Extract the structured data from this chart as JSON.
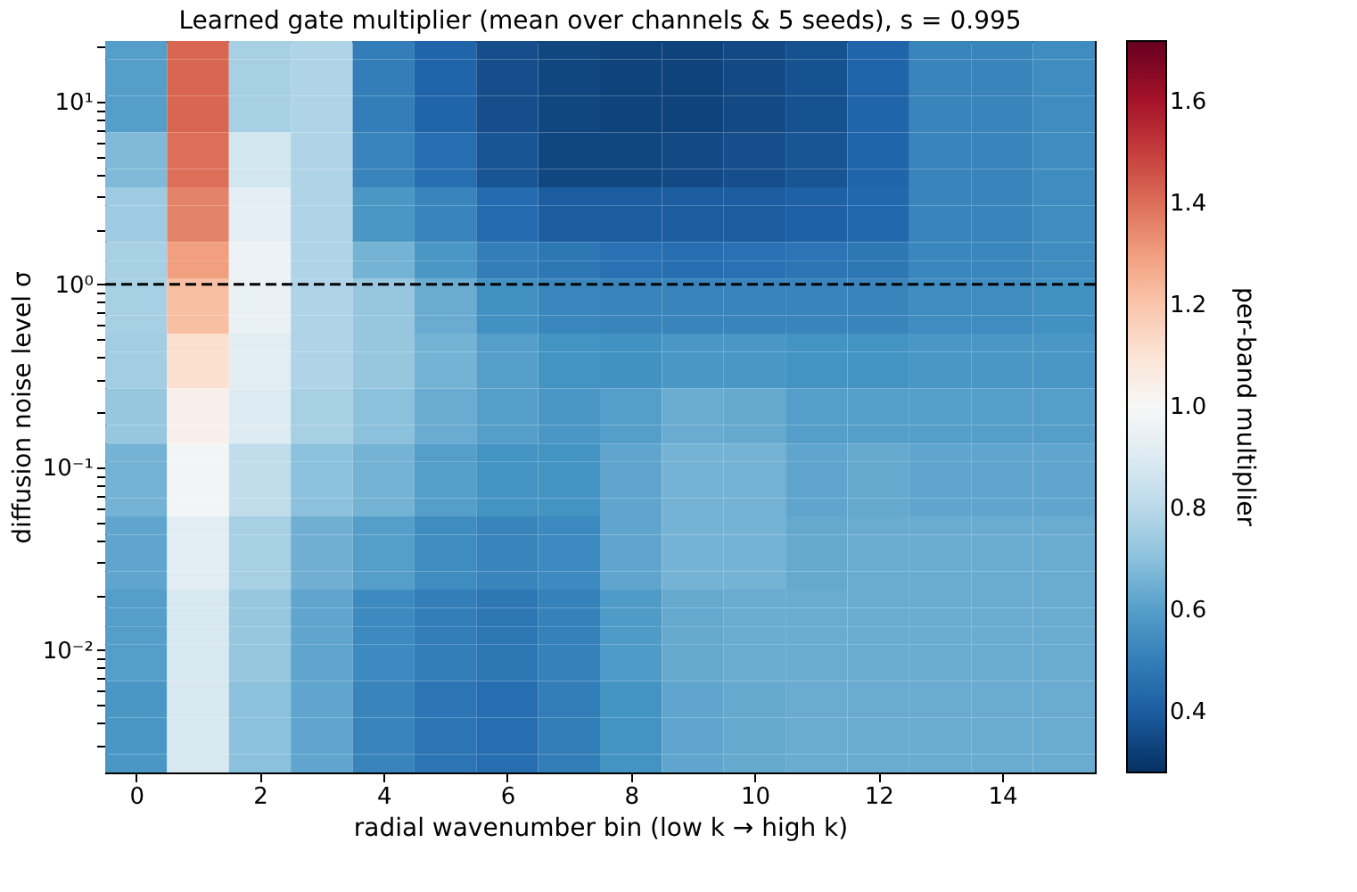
{
  "chart_data": {
    "type": "heatmap",
    "title": "Learned gate multiplier (mean over channels & 5 seeds), s = 0.995",
    "xlabel": "radial wavenumber bin (low k → high k)",
    "ylabel": "diffusion noise level σ",
    "clabel": "per-band multiplier",
    "x": [
      0,
      1,
      2,
      3,
      4,
      5,
      6,
      7,
      8,
      9,
      10,
      11,
      12,
      13,
      14,
      15
    ],
    "xlim": [
      -0.5,
      15.5
    ],
    "xticks": [
      0,
      2,
      4,
      6,
      8,
      10,
      12,
      14
    ],
    "y": [
      19.05,
      15.14,
      12.02,
      9.55,
      7.59,
      6.03,
      4.79,
      3.8,
      3.02,
      2.4,
      1.91,
      1.51,
      1.2,
      0.955,
      0.759,
      0.603,
      0.479,
      0.38,
      0.302,
      0.24,
      0.191,
      0.151,
      0.12,
      0.0955,
      0.0759,
      0.0603,
      0.0479,
      0.038,
      0.0302,
      0.024,
      0.0191,
      0.0151,
      0.012,
      0.00955,
      0.00759,
      0.00603,
      0.00479,
      0.0038,
      0.00302,
      0.0024
    ],
    "ylim": [
      0.00214,
      21.4
    ],
    "log": "y",
    "yticks": [
      {
        "value": 0.003,
        "label": null
      },
      {
        "value": 0.004,
        "label": null
      },
      {
        "value": 0.005,
        "label": null
      },
      {
        "value": 0.006,
        "label": null
      },
      {
        "value": 0.007,
        "label": null
      },
      {
        "value": 0.008,
        "label": null
      },
      {
        "value": 0.009,
        "label": null
      },
      {
        "value": 0.01,
        "label": "10⁻²"
      },
      {
        "value": 0.02,
        "label": null
      },
      {
        "value": 0.03,
        "label": null
      },
      {
        "value": 0.04,
        "label": null
      },
      {
        "value": 0.05,
        "label": null
      },
      {
        "value": 0.06,
        "label": null
      },
      {
        "value": 0.07,
        "label": null
      },
      {
        "value": 0.08,
        "label": null
      },
      {
        "value": 0.09,
        "label": null
      },
      {
        "value": 0.1,
        "label": "10⁻¹"
      },
      {
        "value": 0.2,
        "label": null
      },
      {
        "value": 0.3,
        "label": null
      },
      {
        "value": 0.4,
        "label": null
      },
      {
        "value": 0.5,
        "label": null
      },
      {
        "value": 0.6,
        "label": null
      },
      {
        "value": 0.7,
        "label": null
      },
      {
        "value": 0.8,
        "label": null
      },
      {
        "value": 0.9,
        "label": null
      },
      {
        "value": 1,
        "label": "10⁰"
      },
      {
        "value": 2,
        "label": null
      },
      {
        "value": 3,
        "label": null
      },
      {
        "value": 4,
        "label": null
      },
      {
        "value": 5,
        "label": null
      },
      {
        "value": 6,
        "label": null
      },
      {
        "value": 7,
        "label": null
      },
      {
        "value": 8,
        "label": null
      },
      {
        "value": 9,
        "label": null
      },
      {
        "value": 10,
        "label": "10¹"
      },
      {
        "value": 20,
        "label": null
      }
    ],
    "clim": [
      0.28,
      1.72
    ],
    "cticks": [
      0.4,
      0.6,
      0.8,
      {
        "value": 1,
        "label": "1.0"
      },
      1.2,
      1.4,
      1.6
    ],
    "ref_lines": [
      {
        "axis": "y",
        "value": 1,
        "color": "#000000",
        "line_style": "dashed"
      }
    ],
    "grid": false,
    "cells": [
      [
        0.6,
        1.42,
        0.76,
        0.78,
        0.5,
        0.42,
        0.36,
        0.34,
        0.33,
        0.33,
        0.35,
        0.37,
        0.42,
        0.52,
        0.52,
        0.55
      ],
      [
        0.6,
        1.42,
        0.76,
        0.78,
        0.5,
        0.42,
        0.36,
        0.34,
        0.33,
        0.33,
        0.35,
        0.37,
        0.42,
        0.52,
        0.52,
        0.55
      ],
      [
        0.6,
        1.42,
        0.76,
        0.78,
        0.5,
        0.42,
        0.36,
        0.34,
        0.33,
        0.33,
        0.35,
        0.37,
        0.42,
        0.52,
        0.52,
        0.55
      ],
      [
        0.6,
        1.42,
        0.76,
        0.78,
        0.5,
        0.42,
        0.36,
        0.34,
        0.33,
        0.33,
        0.35,
        0.37,
        0.42,
        0.52,
        0.52,
        0.55
      ],
      [
        0.6,
        1.42,
        0.76,
        0.78,
        0.5,
        0.42,
        0.36,
        0.34,
        0.33,
        0.33,
        0.35,
        0.37,
        0.42,
        0.52,
        0.52,
        0.55
      ],
      [
        0.68,
        1.4,
        0.86,
        0.78,
        0.52,
        0.45,
        0.38,
        0.34,
        0.34,
        0.35,
        0.36,
        0.38,
        0.42,
        0.52,
        0.52,
        0.55
      ],
      [
        0.68,
        1.4,
        0.86,
        0.78,
        0.52,
        0.45,
        0.38,
        0.34,
        0.34,
        0.35,
        0.36,
        0.38,
        0.42,
        0.52,
        0.52,
        0.55
      ],
      [
        0.68,
        1.4,
        0.86,
        0.78,
        0.52,
        0.45,
        0.38,
        0.34,
        0.34,
        0.35,
        0.36,
        0.38,
        0.42,
        0.52,
        0.52,
        0.55
      ],
      [
        0.74,
        1.36,
        0.93,
        0.78,
        0.58,
        0.52,
        0.44,
        0.4,
        0.4,
        0.4,
        0.4,
        0.41,
        0.43,
        0.52,
        0.52,
        0.55
      ],
      [
        0.74,
        1.36,
        0.93,
        0.78,
        0.58,
        0.52,
        0.44,
        0.4,
        0.4,
        0.4,
        0.4,
        0.41,
        0.43,
        0.52,
        0.52,
        0.55
      ],
      [
        0.74,
        1.36,
        0.93,
        0.78,
        0.58,
        0.52,
        0.44,
        0.4,
        0.4,
        0.4,
        0.4,
        0.41,
        0.43,
        0.52,
        0.52,
        0.55
      ],
      [
        0.76,
        1.3,
        0.96,
        0.78,
        0.66,
        0.58,
        0.5,
        0.48,
        0.46,
        0.45,
        0.46,
        0.47,
        0.48,
        0.53,
        0.53,
        0.55
      ],
      [
        0.76,
        1.3,
        0.96,
        0.78,
        0.66,
        0.58,
        0.5,
        0.48,
        0.46,
        0.45,
        0.46,
        0.47,
        0.48,
        0.53,
        0.53,
        0.55
      ],
      [
        0.76,
        1.22,
        0.95,
        0.78,
        0.72,
        0.64,
        0.56,
        0.53,
        0.52,
        0.52,
        0.52,
        0.52,
        0.52,
        0.55,
        0.55,
        0.56
      ],
      [
        0.76,
        1.22,
        0.95,
        0.78,
        0.72,
        0.64,
        0.56,
        0.53,
        0.52,
        0.52,
        0.52,
        0.52,
        0.52,
        0.55,
        0.55,
        0.56
      ],
      [
        0.76,
        1.22,
        0.95,
        0.78,
        0.72,
        0.64,
        0.56,
        0.53,
        0.52,
        0.52,
        0.52,
        0.52,
        0.52,
        0.55,
        0.55,
        0.56
      ],
      [
        0.75,
        1.12,
        0.92,
        0.78,
        0.72,
        0.66,
        0.6,
        0.57,
        0.56,
        0.58,
        0.58,
        0.57,
        0.57,
        0.58,
        0.58,
        0.58
      ],
      [
        0.75,
        1.12,
        0.92,
        0.78,
        0.72,
        0.66,
        0.6,
        0.57,
        0.56,
        0.58,
        0.58,
        0.57,
        0.57,
        0.58,
        0.58,
        0.58
      ],
      [
        0.75,
        1.12,
        0.92,
        0.78,
        0.72,
        0.66,
        0.6,
        0.57,
        0.56,
        0.58,
        0.58,
        0.57,
        0.57,
        0.58,
        0.58,
        0.58
      ],
      [
        0.72,
        1.04,
        0.9,
        0.76,
        0.7,
        0.64,
        0.6,
        0.58,
        0.6,
        0.64,
        0.63,
        0.6,
        0.6,
        0.6,
        0.6,
        0.6
      ],
      [
        0.72,
        1.04,
        0.9,
        0.76,
        0.7,
        0.64,
        0.6,
        0.58,
        0.6,
        0.64,
        0.63,
        0.6,
        0.6,
        0.6,
        0.6,
        0.6
      ],
      [
        0.72,
        1.04,
        0.9,
        0.76,
        0.7,
        0.64,
        0.6,
        0.58,
        0.6,
        0.64,
        0.63,
        0.6,
        0.6,
        0.6,
        0.6,
        0.6
      ],
      [
        0.66,
        0.98,
        0.82,
        0.7,
        0.66,
        0.6,
        0.57,
        0.57,
        0.62,
        0.66,
        0.66,
        0.62,
        0.63,
        0.62,
        0.62,
        0.62
      ],
      [
        0.66,
        0.98,
        0.82,
        0.7,
        0.66,
        0.6,
        0.57,
        0.57,
        0.62,
        0.66,
        0.66,
        0.62,
        0.63,
        0.62,
        0.62,
        0.62
      ],
      [
        0.66,
        0.98,
        0.82,
        0.7,
        0.66,
        0.6,
        0.57,
        0.57,
        0.62,
        0.66,
        0.66,
        0.62,
        0.63,
        0.62,
        0.62,
        0.62
      ],
      [
        0.66,
        0.98,
        0.82,
        0.7,
        0.66,
        0.6,
        0.57,
        0.57,
        0.62,
        0.66,
        0.66,
        0.62,
        0.63,
        0.62,
        0.62,
        0.62
      ],
      [
        0.62,
        0.92,
        0.76,
        0.65,
        0.6,
        0.55,
        0.52,
        0.54,
        0.62,
        0.66,
        0.66,
        0.63,
        0.64,
        0.64,
        0.64,
        0.64
      ],
      [
        0.62,
        0.92,
        0.76,
        0.65,
        0.6,
        0.55,
        0.52,
        0.54,
        0.62,
        0.66,
        0.66,
        0.63,
        0.64,
        0.64,
        0.64,
        0.64
      ],
      [
        0.62,
        0.92,
        0.76,
        0.65,
        0.6,
        0.55,
        0.52,
        0.54,
        0.62,
        0.66,
        0.66,
        0.63,
        0.64,
        0.64,
        0.64,
        0.64
      ],
      [
        0.62,
        0.92,
        0.76,
        0.65,
        0.6,
        0.55,
        0.52,
        0.54,
        0.62,
        0.66,
        0.66,
        0.63,
        0.64,
        0.64,
        0.64,
        0.64
      ],
      [
        0.6,
        0.88,
        0.72,
        0.62,
        0.54,
        0.5,
        0.48,
        0.51,
        0.59,
        0.63,
        0.64,
        0.64,
        0.64,
        0.64,
        0.64,
        0.64
      ],
      [
        0.6,
        0.88,
        0.72,
        0.62,
        0.54,
        0.5,
        0.48,
        0.51,
        0.59,
        0.63,
        0.64,
        0.64,
        0.64,
        0.64,
        0.64,
        0.64
      ],
      [
        0.6,
        0.88,
        0.72,
        0.62,
        0.54,
        0.5,
        0.48,
        0.51,
        0.59,
        0.63,
        0.64,
        0.64,
        0.64,
        0.64,
        0.64,
        0.64
      ],
      [
        0.6,
        0.88,
        0.72,
        0.62,
        0.54,
        0.5,
        0.48,
        0.51,
        0.59,
        0.63,
        0.64,
        0.64,
        0.64,
        0.64,
        0.64,
        0.64
      ],
      [
        0.6,
        0.88,
        0.72,
        0.62,
        0.54,
        0.5,
        0.48,
        0.51,
        0.59,
        0.63,
        0.64,
        0.64,
        0.64,
        0.64,
        0.64,
        0.64
      ],
      [
        0.58,
        0.88,
        0.7,
        0.62,
        0.52,
        0.47,
        0.45,
        0.5,
        0.57,
        0.62,
        0.63,
        0.64,
        0.64,
        0.64,
        0.64,
        0.64
      ],
      [
        0.58,
        0.88,
        0.7,
        0.62,
        0.52,
        0.47,
        0.45,
        0.5,
        0.57,
        0.62,
        0.63,
        0.64,
        0.64,
        0.64,
        0.64,
        0.64
      ],
      [
        0.58,
        0.88,
        0.7,
        0.62,
        0.52,
        0.47,
        0.45,
        0.5,
        0.57,
        0.62,
        0.63,
        0.64,
        0.64,
        0.64,
        0.64,
        0.64
      ],
      [
        0.58,
        0.88,
        0.7,
        0.62,
        0.52,
        0.47,
        0.45,
        0.5,
        0.57,
        0.62,
        0.63,
        0.64,
        0.64,
        0.64,
        0.64,
        0.64
      ],
      [
        0.58,
        0.88,
        0.7,
        0.62,
        0.52,
        0.47,
        0.45,
        0.5,
        0.57,
        0.62,
        0.63,
        0.64,
        0.64,
        0.64,
        0.64,
        0.64
      ]
    ]
  }
}
